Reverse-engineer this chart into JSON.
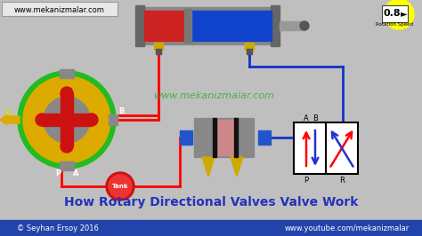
{
  "bg_color": "#c0bfbf",
  "title": "How Rotary Directional Valves Valve Work",
  "title_color": "#2233bb",
  "title_fontsize": 10,
  "watermark": "www.mekanizmalar.com",
  "watermark_color": "#22aa22",
  "top_url": "www.mekanizmalar.com",
  "bottom_left": "© Seyhan Ersoy 2016",
  "bottom_right": "www.youtube.com/mekanizmalar",
  "bottom_bar_color": "#2244aa",
  "rotation_speed": "0.8"
}
